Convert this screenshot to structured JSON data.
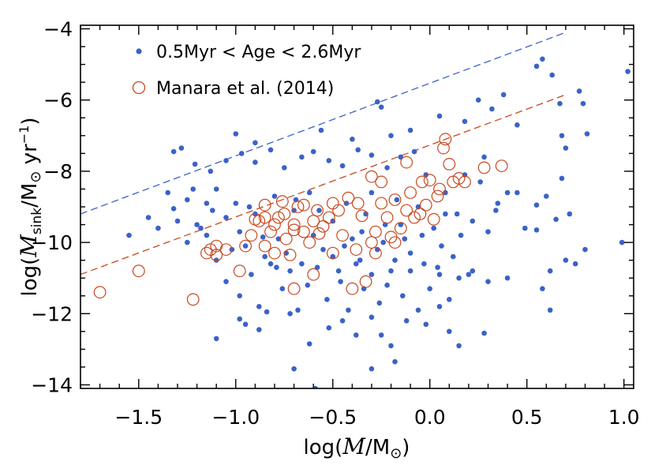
{
  "chart_data": {
    "type": "scatter",
    "xlabel": "log(M/M⊙)",
    "ylabel": "log(Ṁsink/M⊙ yr⁻¹)",
    "ylabel_parts": {
      "prefix": "log(",
      "sym": "M",
      "sub": "sink",
      "mid": "/M",
      "unit_sym": "⊙",
      "yr": " yr",
      "exp": "−1",
      "suffix": ")"
    },
    "xlabel_parts": {
      "prefix": "log(",
      "sym": "M",
      "mid": "/M",
      "unit_sym": "⊙",
      "suffix": ")"
    },
    "xlim": [
      -1.8,
      1.05
    ],
    "ylim": [
      -14.1,
      -3.9
    ],
    "xticks": [
      -1.5,
      -1.0,
      -0.5,
      0.0,
      0.5,
      1.0
    ],
    "xtick_labels": [
      "−1.5",
      "−1.0",
      "−0.5",
      "0.0",
      "0.5",
      "1.0"
    ],
    "yticks": [
      -14,
      -12,
      -10,
      -8,
      -6,
      -4
    ],
    "ytick_labels": [
      "−14",
      "−12",
      "−10",
      "−8",
      "−6",
      "−4"
    ],
    "legend_position": "top-left",
    "series": [
      {
        "name": "0.5Myr < Age < 2.6Myr",
        "marker": "filled-circle",
        "color": "#3a62c8",
        "points": [
          [
            -1.32,
            -7.45
          ],
          [
            -1.28,
            -7.35
          ],
          [
            -1.21,
            -7.8
          ],
          [
            -1.13,
            -8.0
          ],
          [
            -1.05,
            -7.7
          ],
          [
            -0.97,
            -7.5
          ],
          [
            -0.9,
            -7.75
          ],
          [
            -0.82,
            -7.4
          ],
          [
            -0.75,
            -7.9
          ],
          [
            -0.66,
            -7.6
          ],
          [
            -0.6,
            -7.45
          ],
          [
            -0.52,
            -7.7
          ],
          [
            -0.45,
            -7.85
          ],
          [
            -0.37,
            -7.4
          ],
          [
            -0.3,
            -7.55
          ],
          [
            -0.22,
            -7.9
          ],
          [
            -0.15,
            -7.6
          ],
          [
            -0.08,
            -7.45
          ],
          [
            -1.0,
            -6.95
          ],
          [
            -0.9,
            -7.2
          ],
          [
            -0.56,
            -6.85
          ],
          [
            -0.4,
            -7.1
          ],
          [
            -0.27,
            -6.05
          ],
          [
            -0.25,
            -6.2
          ],
          [
            -0.2,
            -7.0
          ],
          [
            -0.1,
            -6.85
          ],
          [
            0.05,
            -6.45
          ],
          [
            0.18,
            -6.6
          ],
          [
            0.25,
            -6.0
          ],
          [
            0.32,
            -6.25
          ],
          [
            0.38,
            -5.85
          ],
          [
            0.45,
            -6.7
          ],
          [
            0.55,
            -5.05
          ],
          [
            0.58,
            -4.85
          ],
          [
            0.63,
            -5.3
          ],
          [
            0.67,
            -6.1
          ],
          [
            -1.55,
            -9.8
          ],
          [
            -1.45,
            -9.3
          ],
          [
            -1.4,
            -9.6
          ],
          [
            -1.35,
            -8.6
          ],
          [
            -1.32,
            -9.05
          ],
          [
            -1.25,
            -8.8
          ],
          [
            -1.2,
            -9.5
          ],
          [
            -1.15,
            -9.8
          ],
          [
            -1.1,
            -8.5
          ],
          [
            -1.05,
            -9.3
          ],
          [
            -1.0,
            -8.9
          ],
          [
            -0.98,
            -9.7
          ],
          [
            -0.95,
            -10.1
          ],
          [
            -0.9,
            -9.2
          ],
          [
            -0.85,
            -10.4
          ],
          [
            -0.8,
            -8.7
          ],
          [
            -0.78,
            -9.9
          ],
          [
            -0.74,
            -10.3
          ],
          [
            -0.7,
            -9.1
          ],
          [
            -0.66,
            -10.6
          ],
          [
            -0.62,
            -8.6
          ],
          [
            -0.6,
            -9.8
          ],
          [
            -0.55,
            -10.2
          ],
          [
            -0.5,
            -9.4
          ],
          [
            -0.47,
            -10.8
          ],
          [
            -0.43,
            -8.9
          ],
          [
            -0.4,
            -9.9
          ],
          [
            -0.36,
            -10.5
          ],
          [
            -0.33,
            -9.2
          ],
          [
            -0.3,
            -8.6
          ],
          [
            -0.27,
            -10.2
          ],
          [
            -0.23,
            -9.5
          ],
          [
            -0.2,
            -10.8
          ],
          [
            -0.17,
            -8.8
          ],
          [
            -0.13,
            -9.9
          ],
          [
            -0.1,
            -10.3
          ],
          [
            -0.06,
            -9.0
          ],
          [
            -0.03,
            -10.6
          ],
          [
            0.02,
            -9.6
          ],
          [
            0.05,
            -10.9
          ],
          [
            0.08,
            -9.2
          ],
          [
            0.12,
            -10.4
          ],
          [
            0.16,
            -9.8
          ],
          [
            0.2,
            -10.9
          ],
          [
            0.26,
            -8.3
          ],
          [
            0.3,
            -9.7
          ],
          [
            0.34,
            -9.1
          ],
          [
            0.4,
            -8.6
          ],
          [
            0.45,
            -8.6
          ],
          [
            0.49,
            -9.6
          ],
          [
            0.55,
            -8.95
          ],
          [
            0.65,
            -9.35
          ],
          [
            0.72,
            -9.2
          ],
          [
            -1.1,
            -10.5
          ],
          [
            -1.05,
            -11.1
          ],
          [
            -0.98,
            -11.5
          ],
          [
            -0.92,
            -10.9
          ],
          [
            -0.88,
            -11.8
          ],
          [
            -0.82,
            -10.6
          ],
          [
            -0.76,
            -11.3
          ],
          [
            -0.72,
            -10.8
          ],
          [
            -0.68,
            -11.9
          ],
          [
            -0.63,
            -11.2
          ],
          [
            -0.58,
            -10.7
          ],
          [
            -0.53,
            -11.6
          ],
          [
            -0.5,
            -10.4
          ],
          [
            -0.46,
            -11.1
          ],
          [
            -0.42,
            -11.9
          ],
          [
            -0.38,
            -10.6
          ],
          [
            -0.34,
            -11.3
          ],
          [
            -0.3,
            -10.9
          ],
          [
            -0.26,
            -11.7
          ],
          [
            -0.22,
            -11.2
          ],
          [
            -0.18,
            -10.5
          ],
          [
            -0.14,
            -11.5
          ],
          [
            -0.1,
            -10.8
          ],
          [
            -0.06,
            -11.9
          ],
          [
            0.0,
            -11.3
          ],
          [
            0.04,
            -10.7
          ],
          [
            0.1,
            -11.6
          ],
          [
            0.15,
            -11.0
          ],
          [
            0.22,
            -10.8
          ],
          [
            0.3,
            -11.1
          ],
          [
            0.4,
            -11.0
          ],
          [
            -1.1,
            -12.7
          ],
          [
            -0.98,
            -12.15
          ],
          [
            -0.95,
            -12.3
          ],
          [
            -0.88,
            -12.45
          ],
          [
            -0.84,
            -11.95
          ],
          [
            -0.72,
            -12.0
          ],
          [
            -0.62,
            -12.85
          ],
          [
            -0.52,
            -12.4
          ],
          [
            -0.45,
            -12.2
          ],
          [
            -0.38,
            -12.6
          ],
          [
            -0.3,
            -12.1
          ],
          [
            -0.2,
            -12.9
          ],
          [
            -0.12,
            -12.2
          ],
          [
            -0.02,
            -12.3
          ],
          [
            0.05,
            -11.8
          ],
          [
            0.1,
            -12.5
          ],
          [
            0.28,
            -12.55
          ],
          [
            0.15,
            -12.9
          ],
          [
            -0.25,
            -12.6
          ],
          [
            -0.7,
            -13.55
          ],
          [
            -0.59,
            -14.1
          ],
          [
            -0.3,
            -13.55
          ],
          [
            -0.18,
            -13.35
          ],
          [
            0.58,
            -11.3
          ],
          [
            0.62,
            -10.8
          ],
          [
            0.7,
            -10.5
          ],
          [
            0.75,
            -10.6
          ],
          [
            0.8,
            -10.2
          ],
          [
            0.62,
            -11.9
          ],
          [
            0.99,
            -10.0
          ],
          [
            1.02,
            -5.2
          ],
          [
            0.77,
            -5.75
          ],
          [
            0.79,
            -6.1
          ],
          [
            0.81,
            -6.95
          ],
          [
            0.68,
            -7.0
          ],
          [
            0.7,
            -7.35
          ],
          [
            0.68,
            -8.2
          ],
          [
            0.55,
            -9.65
          ],
          [
            0.6,
            -8.7
          ],
          [
            -1.12,
            -9.1
          ],
          [
            -1.02,
            -10.2
          ],
          [
            -0.93,
            -9.0
          ],
          [
            -0.86,
            -9.85
          ],
          [
            -0.79,
            -10.7
          ],
          [
            -0.69,
            -8.8
          ],
          [
            -0.57,
            -9.1
          ],
          [
            -0.44,
            -10.1
          ],
          [
            -0.35,
            -9.7
          ],
          [
            -0.24,
            -10.0
          ],
          [
            -0.15,
            -9.5
          ],
          [
            -0.04,
            -9.8
          ],
          [
            0.06,
            -10.1
          ],
          [
            0.14,
            -9.2
          ],
          [
            0.22,
            -9.4
          ],
          [
            0.35,
            -8.9
          ],
          [
            -1.25,
            -10.0
          ],
          [
            -1.18,
            -9.6
          ],
          [
            -1.3,
            -9.4
          ],
          [
            -1.22,
            -8.5
          ],
          [
            -1.15,
            -8.9
          ],
          [
            -0.02,
            -8.1
          ],
          [
            0.08,
            -8.6
          ],
          [
            0.18,
            -8.1
          ],
          [
            0.28,
            -7.6
          ]
        ]
      },
      {
        "name": "Manara et al. (2014)",
        "marker": "open-circle",
        "color": "#c8471e",
        "points": [
          [
            -1.7,
            -11.4
          ],
          [
            -1.5,
            -10.8
          ],
          [
            -1.22,
            -11.6
          ],
          [
            -1.15,
            -10.3
          ],
          [
            -1.13,
            -10.2
          ],
          [
            -1.1,
            -10.35
          ],
          [
            -1.1,
            -10.1
          ],
          [
            -1.05,
            -10.2
          ],
          [
            -0.98,
            -10.8
          ],
          [
            -0.95,
            -10.1
          ],
          [
            -0.92,
            -9.8
          ],
          [
            -0.88,
            -9.4
          ],
          [
            -0.85,
            -8.95
          ],
          [
            -0.82,
            -9.7
          ],
          [
            -0.8,
            -10.3
          ],
          [
            -0.78,
            -9.3
          ],
          [
            -0.76,
            -8.85
          ],
          [
            -0.74,
            -9.9
          ],
          [
            -0.72,
            -10.35
          ],
          [
            -0.7,
            -9.5
          ],
          [
            -0.7,
            -11.3
          ],
          [
            -0.68,
            -9.0
          ],
          [
            -0.65,
            -9.7
          ],
          [
            -0.62,
            -10.0
          ],
          [
            -0.6,
            -10.9
          ],
          [
            -0.58,
            -9.1
          ],
          [
            -0.55,
            -9.55
          ],
          [
            -0.52,
            -9.3
          ],
          [
            -0.5,
            -8.9
          ],
          [
            -0.45,
            -9.8
          ],
          [
            -0.42,
            -8.75
          ],
          [
            -0.4,
            -11.3
          ],
          [
            -0.38,
            -10.2
          ],
          [
            -0.35,
            -9.25
          ],
          [
            -0.33,
            -11.1
          ],
          [
            -0.3,
            -10.0
          ],
          [
            -0.28,
            -9.7
          ],
          [
            -0.25,
            -8.9
          ],
          [
            -0.25,
            -8.3
          ],
          [
            -0.22,
            -9.3
          ],
          [
            -0.2,
            -9.85
          ],
          [
            -0.18,
            -8.8
          ],
          [
            -0.15,
            -9.6
          ],
          [
            -0.12,
            -9.1
          ],
          [
            -0.1,
            -8.6
          ],
          [
            -0.08,
            -9.3
          ],
          [
            -0.05,
            -9.2
          ],
          [
            -0.04,
            -8.3
          ],
          [
            -0.02,
            -8.95
          ],
          [
            0.0,
            -8.25
          ],
          [
            0.02,
            -9.35
          ],
          [
            0.05,
            -8.5
          ],
          [
            0.07,
            -7.35
          ],
          [
            0.08,
            -7.1
          ],
          [
            0.1,
            -7.8
          ],
          [
            0.12,
            -8.3
          ],
          [
            0.15,
            -8.2
          ],
          [
            0.18,
            -8.3
          ],
          [
            0.28,
            -7.9
          ],
          [
            0.37,
            -7.85
          ],
          [
            -0.9,
            -9.35
          ],
          [
            -0.85,
            -9.3
          ],
          [
            -0.8,
            -9.5
          ],
          [
            -0.75,
            -9.2
          ],
          [
            -0.65,
            -8.95
          ],
          [
            -0.57,
            -9.75
          ],
          [
            -0.47,
            -9.1
          ],
          [
            -0.37,
            -8.9
          ],
          [
            -0.3,
            -8.15
          ],
          [
            -0.12,
            -7.75
          ],
          [
            -0.5,
            -10.3
          ],
          [
            -0.6,
            -9.4
          ],
          [
            -0.7,
            -9.65
          ],
          [
            -0.28,
            -10.3
          ],
          [
            -0.18,
            -10.0
          ],
          [
            0.04,
            -8.7
          ],
          [
            -0.85,
            -10.1
          ]
        ]
      }
    ],
    "lines": [
      {
        "name": "upper-envelope",
        "color": "#3a62c8",
        "dash": "dashed",
        "x": [
          -1.8,
          0.7
        ],
        "y": [
          -9.2,
          -4.1
        ]
      },
      {
        "name": "lower-envelope",
        "color": "#c8471e",
        "dash": "dashed",
        "x": [
          -1.8,
          0.7
        ],
        "y": [
          -10.9,
          -5.85
        ]
      }
    ]
  }
}
